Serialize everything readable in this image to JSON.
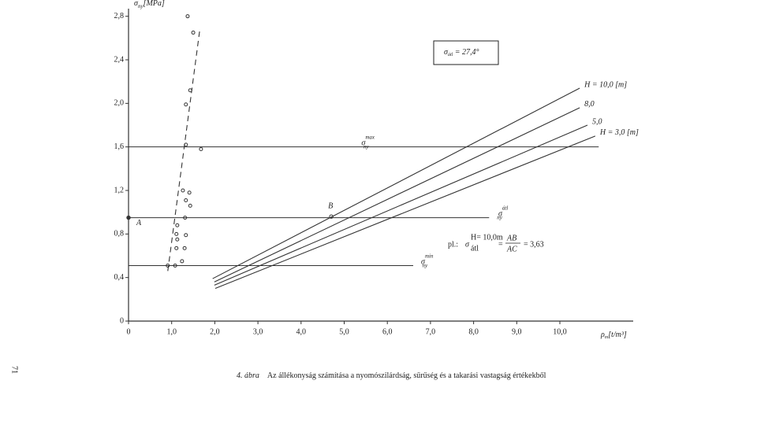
{
  "chart_data": {
    "type": "line",
    "xlabel": {
      "symbol": "ρ",
      "subscript": "m",
      "unit": "[t/m³]"
    },
    "ylabel": {
      "symbol": "σ",
      "subscript": "ny",
      "unit": "[MPa]"
    },
    "xlim": [
      0,
      11.7
    ],
    "ylim": [
      0,
      2.87
    ],
    "xticks": [
      0,
      {
        "value": 1,
        "label": "1,0"
      },
      {
        "value": 2,
        "label": "2,0"
      },
      {
        "value": 3,
        "label": "3,0"
      },
      {
        "value": 4,
        "label": "4,0"
      },
      {
        "value": 5,
        "label": "5,0"
      },
      {
        "value": 6,
        "label": "6,0"
      },
      {
        "value": 7,
        "label": "7,0"
      },
      {
        "value": 8,
        "label": "8,0"
      },
      {
        "value": 9,
        "label": "9,0"
      },
      {
        "value": 10,
        "label": "10,0"
      }
    ],
    "yticks": [
      0,
      {
        "value": 0.4,
        "label": "0,4"
      },
      {
        "value": 0.8,
        "label": "0,8"
      },
      {
        "value": 1.2,
        "label": "1,2"
      },
      {
        "value": 1.6,
        "label": "1,6"
      },
      {
        "value": 2.0,
        "label": "2,0"
      },
      {
        "value": 2.4,
        "label": "2,4"
      },
      {
        "value": 2.8,
        "label": "2,8"
      }
    ],
    "color": "#333333",
    "series": [
      {
        "type": "line",
        "name": "H = 10,0 [m]",
        "x": [
          1.95,
          10.46
        ],
        "values": [
          0.39,
          2.14
        ]
      },
      {
        "type": "line",
        "name": "8,0",
        "x": [
          1.99,
          10.46
        ],
        "values": [
          0.36,
          1.96
        ]
      },
      {
        "type": "line",
        "name": "5,0",
        "x": [
          1.99,
          10.64
        ],
        "values": [
          0.33,
          1.8
        ]
      },
      {
        "type": "line",
        "name": "H = 3,0 [m]",
        "x": [
          2.01,
          10.82
        ],
        "values": [
          0.3,
          1.7
        ]
      },
      {
        "type": "line",
        "dashed": true,
        "x": [
          0.91,
          1.65
        ],
        "values": [
          0.46,
          2.67
        ]
      },
      {
        "type": "scatter",
        "x": [
          1.37,
          1.5,
          1.43,
          1.33,
          1.33,
          1.68,
          1.26,
          1.41,
          1.33,
          1.43,
          1.31,
          1.13,
          1.11,
          1.33,
          1.13,
          1.11,
          1.3,
          1.24,
          0.91,
          1.08
        ],
        "values": [
          2.8,
          2.65,
          2.12,
          1.99,
          1.62,
          1.58,
          1.2,
          1.18,
          1.11,
          1.06,
          0.95,
          0.88,
          0.8,
          0.79,
          0.75,
          0.67,
          0.67,
          0.55,
          0.51,
          0.51
        ]
      }
    ],
    "reference_lines": [
      {
        "symbol": "σ",
        "subscript": "ny",
        "superscript": "max",
        "value": 1.6,
        "x_end": 10.9
      },
      {
        "symbol": "σ",
        "subscript": "ny",
        "superscript": "átl",
        "value": 0.95,
        "x_end": 8.36
      },
      {
        "symbol": "σ",
        "subscript": "ny",
        "superscript": "min",
        "value": 0.51,
        "x_end": 6.6
      }
    ],
    "points": [
      {
        "label": "A",
        "x": 0,
        "y": 0.95
      },
      {
        "label": "B",
        "x": 4.7,
        "y": 0.96
      }
    ],
    "box": {
      "symbol": "σ",
      "subscript": "átl",
      "text": " = 27,4°"
    },
    "formula": {
      "prefix": "pl.:",
      "symbol": "σ",
      "subscript": "átl",
      "superscript": "H= 10,0m",
      "equals": "=",
      "numerator": "AB",
      "denominator": "AC",
      "result": "= 3,63"
    }
  },
  "caption": {
    "number": "4. ábra",
    "text": "Az állékonyság számítása a nyomószilárdság, sűrűség és a takarási vastagság értékekből"
  },
  "page_number": "71"
}
